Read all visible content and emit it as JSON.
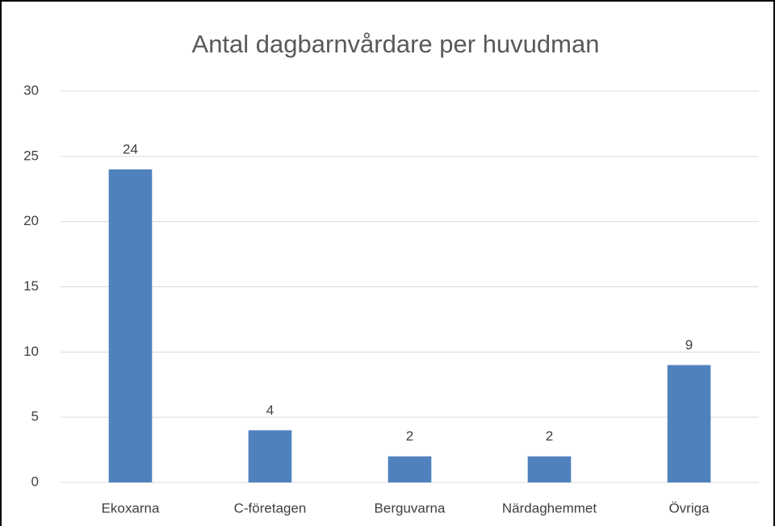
{
  "chart_data": {
    "type": "bar",
    "title": "Antal dagbarnvårdare per huvudman",
    "categories": [
      "Ekoxarna",
      "C-företagen",
      "Berguvarna",
      "Närdaghemmet",
      "Övriga"
    ],
    "values": [
      24,
      4,
      2,
      2,
      9
    ],
    "color": "#4f81bd",
    "ylim": [
      0,
      30
    ],
    "yticks": [
      0,
      5,
      10,
      15,
      20,
      25,
      30
    ],
    "grid": true,
    "data_labels": true
  }
}
